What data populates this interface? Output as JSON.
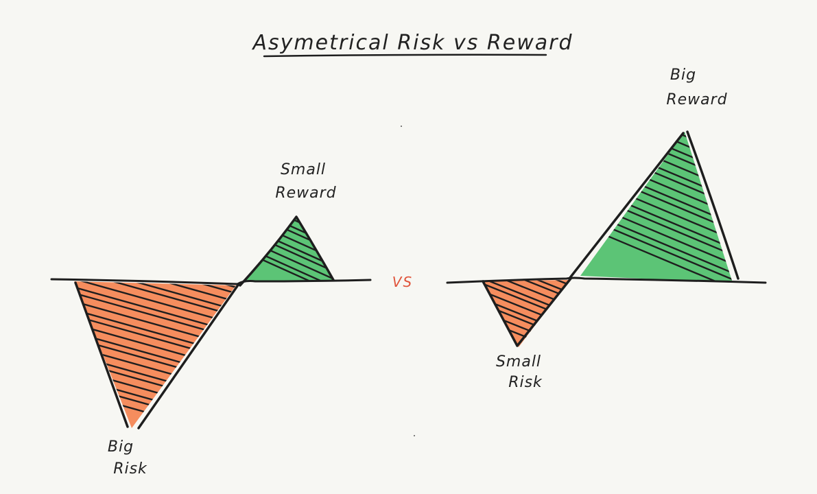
{
  "title": "Asymetrical Risk vs Reward",
  "vs_label": "VS",
  "left_scenario": {
    "risk_label_lines": [
      "Big",
      "Risk"
    ],
    "reward_label_lines": [
      "Small",
      "Reward"
    ]
  },
  "right_scenario": {
    "risk_label_lines": [
      "Small",
      "Risk"
    ],
    "reward_label_lines": [
      "Big",
      "Reward"
    ]
  },
  "colors": {
    "background": "#f7f7f3",
    "risk_fill": "#f58d5e",
    "reward_fill": "#5cc476",
    "ink": "#1e1e1e",
    "vs": "#e0533a"
  }
}
